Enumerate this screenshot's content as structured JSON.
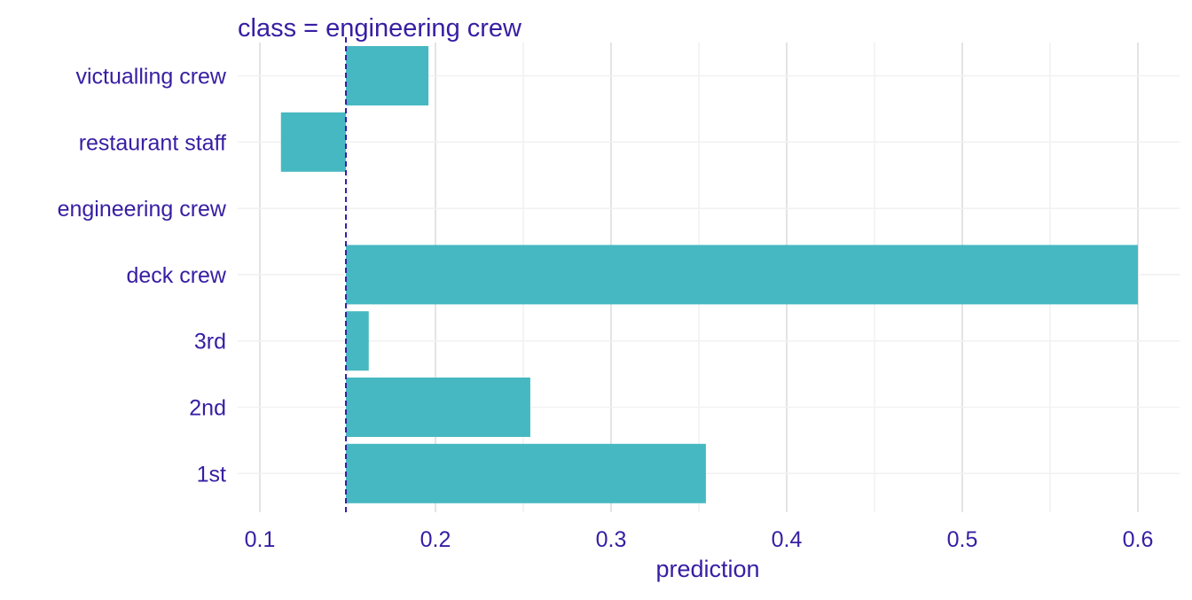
{
  "chart_data": {
    "type": "bar",
    "orientation": "horizontal",
    "title": "class = engineering crew",
    "xlabel": "prediction",
    "ylabel": "",
    "categories": [
      "victualling crew",
      "restaurant staff",
      "engineering crew",
      "deck crew",
      "3rd",
      "2nd",
      "1st"
    ],
    "values": [
      0.196,
      0.112,
      0.149,
      0.6,
      0.162,
      0.254,
      0.354
    ],
    "baseline": 0.149,
    "xlim": [
      0.085,
      0.62
    ],
    "xticks": [
      0.1,
      0.2,
      0.3,
      0.4,
      0.5,
      0.6
    ],
    "xtick_labels": [
      "0.1",
      "0.2",
      "0.3",
      "0.4",
      "0.5",
      "0.6"
    ],
    "grid": true,
    "legend": "none",
    "colors": {
      "bar": "#46b8c1",
      "text": "#371ea3",
      "baseline": "#371ea3",
      "grid_major": "#e4e4e4",
      "grid_minor": "#f1f1f1"
    }
  }
}
